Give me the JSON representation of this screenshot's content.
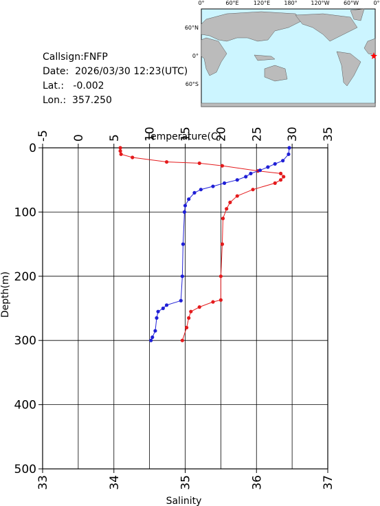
{
  "info": [
    "Callsign:FNFP",
    "Date:  2026/03/30 12:23(UTC)",
    "Lat.:   -0.002",
    "Lon.:  357.250"
  ],
  "map": {
    "lon_labels": [
      "0°",
      "60°E",
      "120°E",
      "180°",
      "120°W",
      "60°W",
      "0°"
    ],
    "lat_labels": [
      "60°N",
      "0°",
      "60°S"
    ]
  },
  "chart_data": {
    "type": "profile",
    "xlabel": "Salinity",
    "x2label": "Temperature(C)",
    "ylabel": "Depth(m)",
    "xlim": [
      33,
      37
    ],
    "xticks": [
      33,
      34,
      35,
      36,
      37
    ],
    "x2lim": [
      -5,
      35
    ],
    "x2ticks": [
      -5,
      0,
      5,
      10,
      15,
      20,
      25,
      30,
      35
    ],
    "ylim": [
      0,
      500
    ],
    "yticks": [
      0,
      100,
      200,
      300,
      400,
      500
    ],
    "y_inverted": true,
    "grid": true,
    "series": [
      {
        "color": "#e41a1c",
        "axis": "x",
        "depth": [
          0,
          5,
          10,
          15,
          22,
          24,
          28,
          36,
          40,
          45,
          50,
          55,
          65,
          75,
          85,
          95,
          110,
          150,
          200,
          237,
          240,
          248,
          255,
          265,
          280,
          300
        ],
        "values": [
          34.09,
          34.09,
          34.1,
          34.26,
          34.74,
          35.2,
          35.52,
          36.02,
          36.34,
          36.38,
          36.34,
          36.26,
          35.95,
          35.73,
          35.63,
          35.58,
          35.53,
          35.52,
          35.5,
          35.5,
          35.39,
          35.2,
          35.08,
          35.05,
          35.02,
          34.96
        ]
      },
      {
        "color": "#1f1fd6",
        "axis": "x2",
        "depth": [
          0,
          10,
          20,
          25,
          30,
          35,
          40,
          45,
          50,
          55,
          60,
          65,
          70,
          80,
          90,
          100,
          150,
          200,
          238,
          245,
          250,
          255,
          265,
          285,
          295,
          300
        ],
        "values": [
          29.6,
          29.5,
          28.7,
          27.6,
          26.6,
          25.5,
          24.2,
          23.5,
          22.3,
          20.5,
          18.9,
          17.2,
          16.3,
          15.5,
          15.0,
          14.9,
          14.7,
          14.6,
          14.4,
          12.4,
          11.9,
          11.2,
          11.0,
          10.8,
          10.4,
          10.2
        ]
      }
    ]
  }
}
